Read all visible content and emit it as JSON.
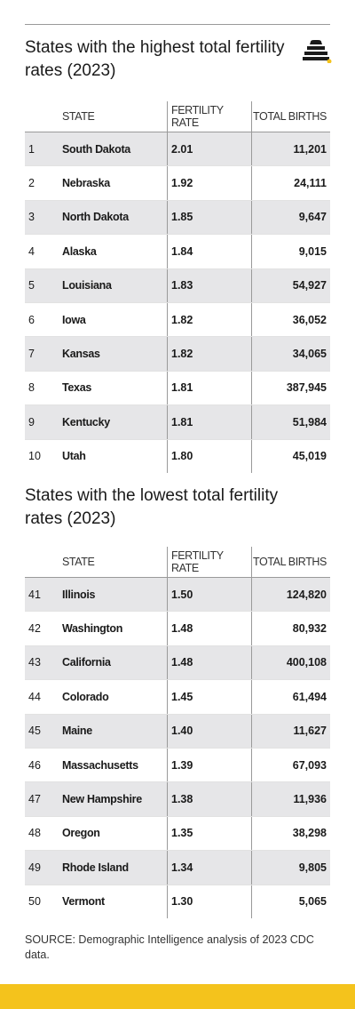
{
  "header": {
    "logo_icon": "stacked-bars-logo-icon"
  },
  "colors": {
    "accent": "#f4c31c",
    "row_shade": "#e6e6e8",
    "divider": "#9a9a9a"
  },
  "highest": {
    "title": "States with the highest total fertility rates (2023)",
    "columns": {
      "state": "STATE",
      "rate": "FERTILITY RATE",
      "births": "TOTAL BIRTHS"
    },
    "rows": [
      {
        "rank": "1",
        "state": "South Dakota",
        "rate": "2.01",
        "births": "11,201"
      },
      {
        "rank": "2",
        "state": "Nebraska",
        "rate": "1.92",
        "births": "24,111"
      },
      {
        "rank": "3",
        "state": "North Dakota",
        "rate": "1.85",
        "births": "9,647"
      },
      {
        "rank": "4",
        "state": "Alaska",
        "rate": "1.84",
        "births": "9,015"
      },
      {
        "rank": "5",
        "state": "Louisiana",
        "rate": "1.83",
        "births": "54,927"
      },
      {
        "rank": "6",
        "state": "Iowa",
        "rate": "1.82",
        "births": "36,052"
      },
      {
        "rank": "7",
        "state": "Kansas",
        "rate": "1.82",
        "births": "34,065"
      },
      {
        "rank": "8",
        "state": "Texas",
        "rate": "1.81",
        "births": "387,945"
      },
      {
        "rank": "9",
        "state": "Kentucky",
        "rate": "1.81",
        "births": "51,984"
      },
      {
        "rank": "10",
        "state": "Utah",
        "rate": "1.80",
        "births": "45,019"
      }
    ]
  },
  "lowest": {
    "title": "States with the lowest total fertility rates (2023)",
    "columns": {
      "state": "STATE",
      "rate": "FERTILITY RATE",
      "births": "TOTAL BIRTHS"
    },
    "rows": [
      {
        "rank": "41",
        "state": "Illinois",
        "rate": "1.50",
        "births": "124,820"
      },
      {
        "rank": "42",
        "state": "Washington",
        "rate": "1.48",
        "births": "80,932"
      },
      {
        "rank": "43",
        "state": "California",
        "rate": "1.48",
        "births": "400,108"
      },
      {
        "rank": "44",
        "state": "Colorado",
        "rate": "1.45",
        "births": "61,494"
      },
      {
        "rank": "45",
        "state": "Maine",
        "rate": "1.40",
        "births": "11,627"
      },
      {
        "rank": "46",
        "state": "Massachusetts",
        "rate": "1.39",
        "births": "67,093"
      },
      {
        "rank": "47",
        "state": "New Hampshire",
        "rate": "1.38",
        "births": "11,936"
      },
      {
        "rank": "48",
        "state": "Oregon",
        "rate": "1.35",
        "births": "38,298"
      },
      {
        "rank": "49",
        "state": "Rhode Island",
        "rate": "1.34",
        "births": "9,805"
      },
      {
        "rank": "50",
        "state": "Vermont",
        "rate": "1.30",
        "births": "5,065"
      }
    ]
  },
  "source": "SOURCE: Demographic Intelligence analysis of 2023 CDC data.",
  "chart_data": [
    {
      "type": "table",
      "title": "States with the highest total fertility rates (2023)",
      "columns": [
        "",
        "STATE",
        "FERTILITY RATE",
        "TOTAL BIRTHS"
      ],
      "rows": [
        [
          1,
          "South Dakota",
          2.01,
          11201
        ],
        [
          2,
          "Nebraska",
          1.92,
          24111
        ],
        [
          3,
          "North Dakota",
          1.85,
          9647
        ],
        [
          4,
          "Alaska",
          1.84,
          9015
        ],
        [
          5,
          "Louisiana",
          1.83,
          54927
        ],
        [
          6,
          "Iowa",
          1.82,
          36052
        ],
        [
          7,
          "Kansas",
          1.82,
          34065
        ],
        [
          8,
          "Texas",
          1.81,
          387945
        ],
        [
          9,
          "Kentucky",
          1.81,
          51984
        ],
        [
          10,
          "Utah",
          1.8,
          45019
        ]
      ]
    },
    {
      "type": "table",
      "title": "States with the lowest total fertility rates (2023)",
      "columns": [
        "",
        "STATE",
        "FERTILITY RATE",
        "TOTAL BIRTHS"
      ],
      "rows": [
        [
          41,
          "Illinois",
          1.5,
          124820
        ],
        [
          42,
          "Washington",
          1.48,
          80932
        ],
        [
          43,
          "California",
          1.48,
          400108
        ],
        [
          44,
          "Colorado",
          1.45,
          61494
        ],
        [
          45,
          "Maine",
          1.4,
          11627
        ],
        [
          46,
          "Massachusetts",
          1.39,
          67093
        ],
        [
          47,
          "New Hampshire",
          1.38,
          11936
        ],
        [
          48,
          "Oregon",
          1.35,
          38298
        ],
        [
          49,
          "Rhode Island",
          1.34,
          9805
        ],
        [
          50,
          "Vermont",
          1.3,
          5065
        ]
      ]
    }
  ]
}
